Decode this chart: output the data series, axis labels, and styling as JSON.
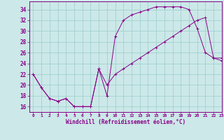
{
  "xlabel": "Windchill (Refroidissement éolien,°C)",
  "bg_color": "#cce8e8",
  "line_color": "#880088",
  "grid_color": "#99cccc",
  "xlim": [
    -0.5,
    23
  ],
  "ylim": [
    15,
    35.5
  ],
  "yticks": [
    16,
    18,
    20,
    22,
    24,
    26,
    28,
    30,
    32,
    34
  ],
  "xticks": [
    0,
    1,
    2,
    3,
    4,
    5,
    6,
    7,
    8,
    9,
    10,
    11,
    12,
    13,
    14,
    15,
    16,
    17,
    18,
    19,
    20,
    21,
    22,
    23
  ],
  "series1_x": [
    0,
    1,
    2,
    3,
    4,
    5,
    6,
    7,
    8,
    9,
    10,
    11,
    12,
    13,
    14,
    15,
    16,
    17,
    18,
    19,
    20,
    21,
    22,
    23
  ],
  "series1_y": [
    22,
    19.5,
    17.5,
    17,
    17.5,
    16,
    16,
    16,
    23,
    18,
    29,
    32,
    33,
    33.5,
    34,
    34.5,
    34.5,
    34.5,
    34.5,
    34,
    30.5,
    26,
    25,
    25
  ],
  "series2_x": [
    0,
    1,
    2,
    3,
    4,
    5,
    6,
    7,
    8,
    9,
    10,
    11,
    12,
    13,
    14,
    15,
    16,
    17,
    18,
    19,
    20,
    21,
    22,
    23
  ],
  "series2_y": [
    22,
    19.5,
    17.5,
    17,
    17.5,
    16,
    16,
    16,
    23,
    20,
    22,
    23,
    24,
    25,
    26,
    27,
    28,
    29,
    30,
    31,
    32,
    32.5,
    25,
    24.5
  ]
}
